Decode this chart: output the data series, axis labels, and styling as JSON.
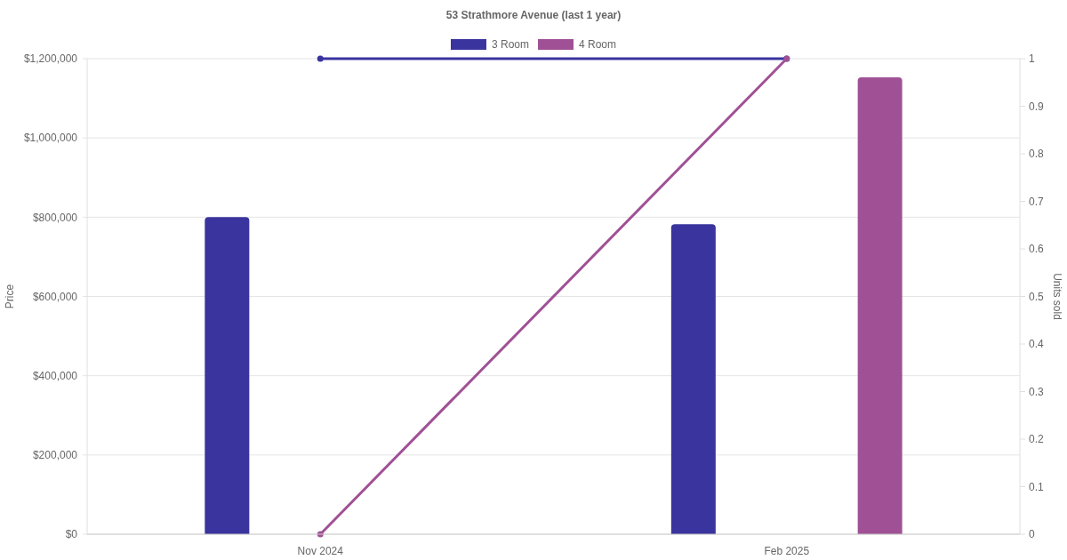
{
  "chart_data": {
    "type": "bar",
    "title": "53 Strathmore Avenue (last 1 year)",
    "ylabel": "Price",
    "y2label": "Units sold",
    "categories": [
      "Nov 2024",
      "Feb 2025"
    ],
    "series": [
      {
        "name": "3 Room",
        "color": "#3a349e",
        "values": [
          800000,
          782000
        ]
      },
      {
        "name": "4 Room",
        "color": "#a05195",
        "values": [
          null,
          1153000
        ]
      },
      {
        "type": "line",
        "axis": "y2",
        "color": "#3a349e",
        "values": [
          1,
          1
        ]
      },
      {
        "type": "line",
        "axis": "y2",
        "color": "#a05195",
        "values": [
          0,
          1
        ]
      }
    ],
    "ylim": [
      0,
      1200000
    ],
    "yticks": [
      {
        "value": 0,
        "label": "$0"
      },
      {
        "value": 200000,
        "label": "$200,000"
      },
      {
        "value": 400000,
        "label": "$400,000"
      },
      {
        "value": 600000,
        "label": "$600,000"
      },
      {
        "value": 800000,
        "label": "$800,000"
      },
      {
        "value": 1000000,
        "label": "$1,000,000"
      },
      {
        "value": 1200000,
        "label": "$1,200,000"
      }
    ],
    "y2lim": [
      0,
      1
    ],
    "y2ticks": [
      0,
      0.1,
      0.2,
      0.3,
      0.4,
      0.5,
      0.6,
      0.7,
      0.8,
      0.9,
      1
    ],
    "grid": "y",
    "legend": "top",
    "marker": "circle",
    "line_style": "solid"
  }
}
